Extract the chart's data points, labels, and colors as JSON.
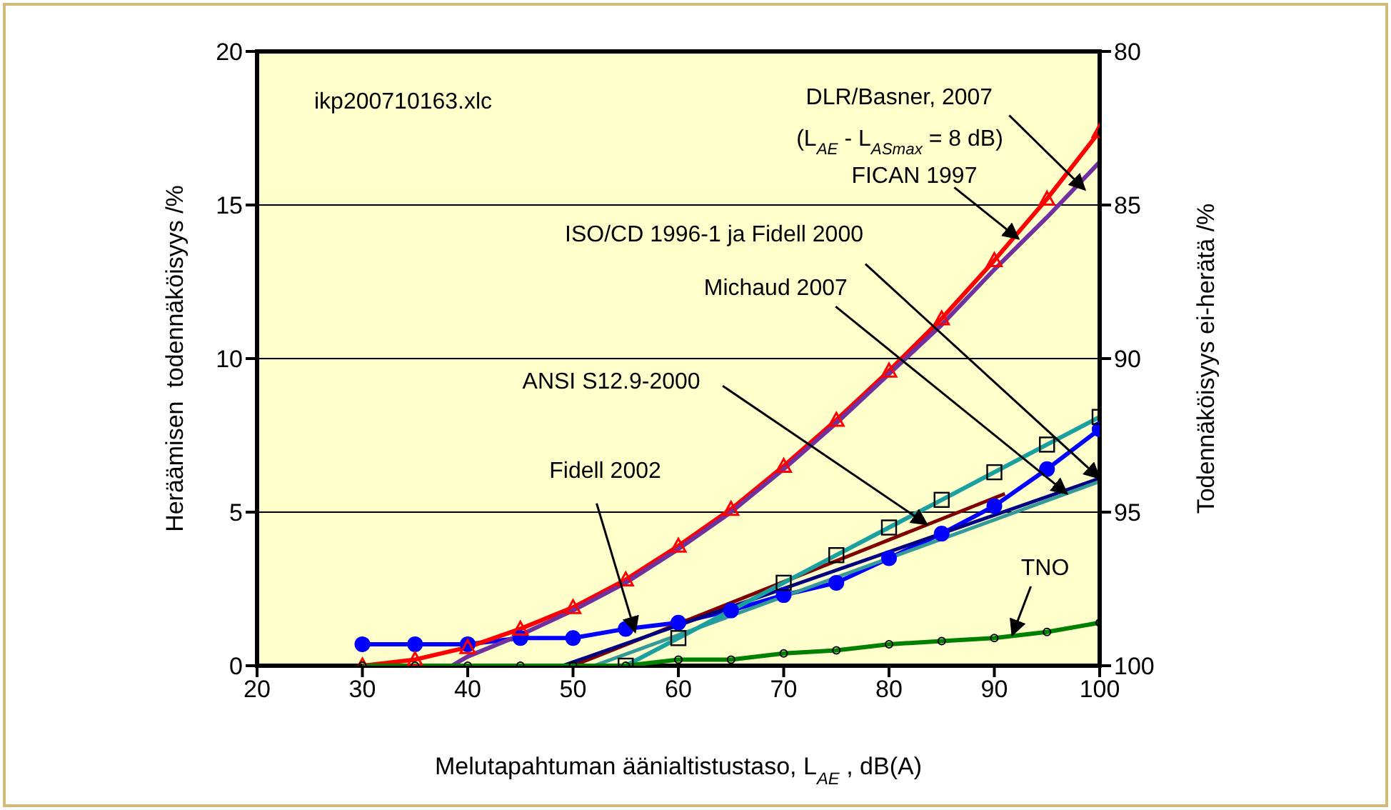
{
  "chart_data": {
    "type": "line",
    "xlabel": "Melutapahtuman äänialtistustaso, L$_{AE}$, dB(A)",
    "ylabel": "Heräämisen  todennäköisyys /%",
    "y2label": "Todennäköisyys ei-herätä /%",
    "xlim": [
      20,
      100
    ],
    "xticks": [
      20,
      30,
      40,
      50,
      60,
      70,
      80,
      90,
      100
    ],
    "ylim": [
      0,
      20
    ],
    "yticks": [
      0,
      5,
      10,
      15,
      20
    ],
    "y2lim": [
      100,
      80
    ],
    "y2ticks": [
      80,
      85,
      90,
      95,
      100
    ],
    "grid": "y",
    "series": [
      {
        "color": "#0000ff",
        "marker": "circle",
        "x": [
          30,
          35,
          40,
          45,
          50,
          55,
          60,
          65,
          70,
          75,
          80,
          85,
          90,
          95,
          100
        ],
        "values": [
          0.7,
          0.7,
          0.7,
          0.9,
          0.9,
          1.2,
          1.4,
          1.8,
          2.3,
          2.7,
          3.5,
          4.3,
          5.2,
          6.4,
          7.7
        ]
      },
      {
        "color": "#ff0000",
        "marker": "triangle",
        "x": [
          30,
          35,
          40,
          45,
          50,
          55,
          60,
          65,
          70,
          75,
          80,
          85,
          90,
          95,
          100
        ],
        "values": [
          0,
          0.2,
          0.6,
          1.2,
          1.9,
          2.8,
          3.9,
          5.1,
          6.5,
          8.0,
          9.6,
          11.3,
          13.2,
          15.2,
          17.4
        ]
      },
      {
        "color": "#7030a0",
        "x": [
          38.5,
          40,
          45,
          50,
          55,
          60,
          65,
          70,
          75,
          80,
          85,
          90,
          95,
          100
        ],
        "values": [
          0,
          0.3,
          1.0,
          1.8,
          2.7,
          3.8,
          5.0,
          6.4,
          7.9,
          9.5,
          11.1,
          12.9,
          14.6,
          16.4
        ]
      },
      {
        "color": "#800000",
        "x": [
          50,
          91
        ],
        "values": [
          0,
          5.6
        ]
      },
      {
        "color": "#000080",
        "x": [
          49,
          100
        ],
        "values": [
          0,
          6.1
        ]
      },
      {
        "color": "#339999",
        "x": [
          52,
          100
        ],
        "values": [
          0,
          6.0
        ]
      },
      {
        "color": "#1aa0a0",
        "marker": "square",
        "x": [
          55,
          60,
          70,
          75,
          80,
          85,
          90,
          95,
          100
        ],
        "values": [
          0,
          0.9,
          2.7,
          3.6,
          4.5,
          5.4,
          6.3,
          7.2,
          8.1
        ]
      },
      {
        "color": "#008000",
        "marker": "circle",
        "x": [
          30,
          35,
          40,
          45,
          50,
          55,
          60,
          65,
          70,
          75,
          80,
          85,
          90,
          95,
          100
        ],
        "values": [
          0,
          0,
          0,
          0,
          0,
          0,
          0.2,
          0.2,
          0.4,
          0.5,
          0.7,
          0.8,
          0.9,
          1.1,
          1.4
        ]
      }
    ],
    "annotations": [
      "ikp200710163.xlc",
      {
        "text": "DLR/Basner, 2007",
        "x": 98.6,
        "y": 15.5
      },
      "(L$_{AE}$ - L$_{ASmax}$ = 8 dB)",
      {
        "text": "FICAN 1997",
        "x": 92.3,
        "y": 13.9
      },
      {
        "text": "ISO/CD 1996-1 ja Fidell 2000",
        "x": 100,
        "y": 6.1
      },
      {
        "text": "Michaud 2007",
        "x": 96.9,
        "y": 5.6
      },
      {
        "text": "ANSI S12.9-2000",
        "x": 83.6,
        "y": 4.6
      },
      {
        "text": "Fidell 2002",
        "x": 55.9,
        "y": 1.1
      },
      {
        "text": "TNO",
        "x": 91.7,
        "y": 1.0
      }
    ]
  }
}
